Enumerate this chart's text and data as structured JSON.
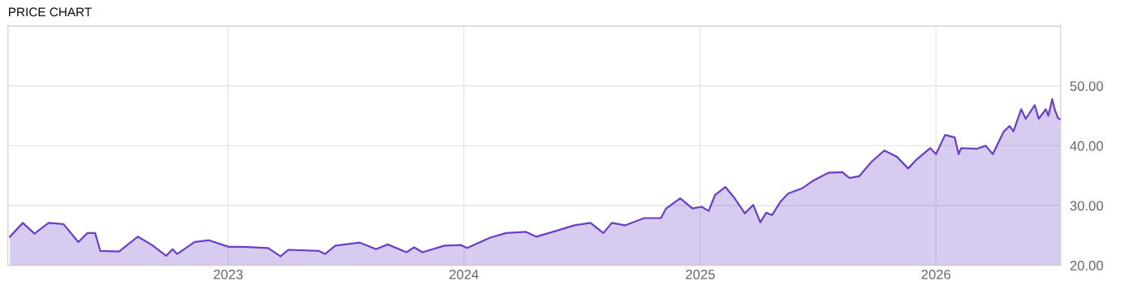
{
  "chart_data": {
    "type": "area",
    "title": "PRICE CHART",
    "x": [
      "2022-01-28",
      "2022-02-17",
      "2022-03-07",
      "2022-03-29",
      "2022-04-21",
      "2022-05-14",
      "2022-05-28",
      "2022-06-09",
      "2022-06-17",
      "2022-07-16",
      "2022-08-14",
      "2022-09-05",
      "2022-09-27",
      "2022-10-07",
      "2022-10-14",
      "2022-11-10",
      "2022-12-02",
      "2023-01-02",
      "2023-01-25",
      "2023-03-04",
      "2023-03-23",
      "2023-04-04",
      "2023-05-22",
      "2023-05-31",
      "2023-06-16",
      "2023-07-24",
      "2023-08-18",
      "2023-09-05",
      "2023-10-04",
      "2023-10-16",
      "2023-10-29",
      "2023-12-02",
      "2023-12-27",
      "2024-01-06",
      "2024-02-10",
      "2024-03-06",
      "2024-04-06",
      "2024-04-22",
      "2024-05-21",
      "2024-06-20",
      "2024-07-15",
      "2024-08-04",
      "2024-08-17",
      "2024-09-07",
      "2024-10-06",
      "2024-11-01",
      "2024-11-09",
      "2024-12-01",
      "2024-12-20",
      "2025-01-03",
      "2025-01-14",
      "2025-01-24",
      "2025-02-09",
      "2025-02-22",
      "2025-03-11",
      "2025-03-24",
      "2025-04-04",
      "2025-04-13",
      "2025-04-22",
      "2025-05-05",
      "2025-05-17",
      "2025-06-08",
      "2025-06-24",
      "2025-07-19",
      "2025-08-09",
      "2025-08-20",
      "2025-09-04",
      "2025-09-23",
      "2025-10-13",
      "2025-11-01",
      "2025-11-19",
      "2025-12-02",
      "2025-12-23",
      "2026-01-01",
      "2026-01-15",
      "2026-01-30",
      "2026-02-05",
      "2026-02-09",
      "2026-03-06",
      "2026-03-19",
      "2026-03-30",
      "2026-04-07",
      "2026-04-16",
      "2026-04-25",
      "2026-05-01",
      "2026-05-13",
      "2026-05-20",
      "2026-06-03",
      "2026-06-09",
      "2026-06-20",
      "2026-06-24",
      "2026-06-30",
      "2026-07-04",
      "2026-07-09",
      "2026-07-13"
    ],
    "series": [
      {
        "color": "#6a3fc8",
        "values": [
          24.8,
          27.1,
          25.3,
          27.1,
          26.9,
          23.9,
          25.4,
          25.4,
          22.4,
          22.3,
          24.8,
          23.4,
          21.6,
          22.7,
          21.9,
          23.9,
          24.2,
          23.1,
          23.1,
          22.9,
          21.5,
          22.6,
          22.4,
          21.9,
          23.3,
          23.8,
          22.7,
          23.5,
          22.2,
          23.0,
          22.2,
          23.3,
          23.4,
          22.9,
          24.6,
          25.4,
          25.6,
          24.8,
          25.7,
          26.7,
          27.1,
          25.4,
          27.1,
          26.7,
          27.9,
          27.9,
          29.5,
          31.2,
          29.5,
          29.8,
          29.1,
          31.8,
          33.1,
          31.4,
          28.7,
          30.1,
          27.2,
          28.8,
          28.4,
          30.6,
          32.0,
          32.9,
          34.1,
          35.5,
          35.6,
          34.6,
          34.9,
          37.3,
          39.2,
          38.2,
          36.2,
          37.7,
          39.6,
          38.6,
          41.8,
          41.4,
          38.6,
          39.6,
          39.5,
          40.0,
          38.6,
          40.4,
          42.4,
          43.3,
          42.4,
          46.1,
          44.5,
          46.8,
          44.5,
          46.1,
          45.0,
          47.8,
          46.0,
          44.6,
          44.4
        ]
      }
    ],
    "xlim": [
      "2022-01-25",
      "2026-07-13"
    ],
    "xticks": [
      {
        "value": "2023-01-01",
        "label": "2023"
      },
      {
        "value": "2024-01-01",
        "label": "2024"
      },
      {
        "value": "2025-01-01",
        "label": "2025"
      },
      {
        "value": "2026-01-01",
        "label": "2026"
      }
    ],
    "ylim": [
      20,
      60
    ],
    "yticks": [
      {
        "value": 20,
        "label": "20.00"
      },
      {
        "value": 30,
        "label": "30.00"
      },
      {
        "value": 40,
        "label": "40.00"
      },
      {
        "value": 50,
        "label": "50.00"
      }
    ],
    "grid": true,
    "legend": false,
    "line_style": "solid",
    "marker": "none"
  }
}
